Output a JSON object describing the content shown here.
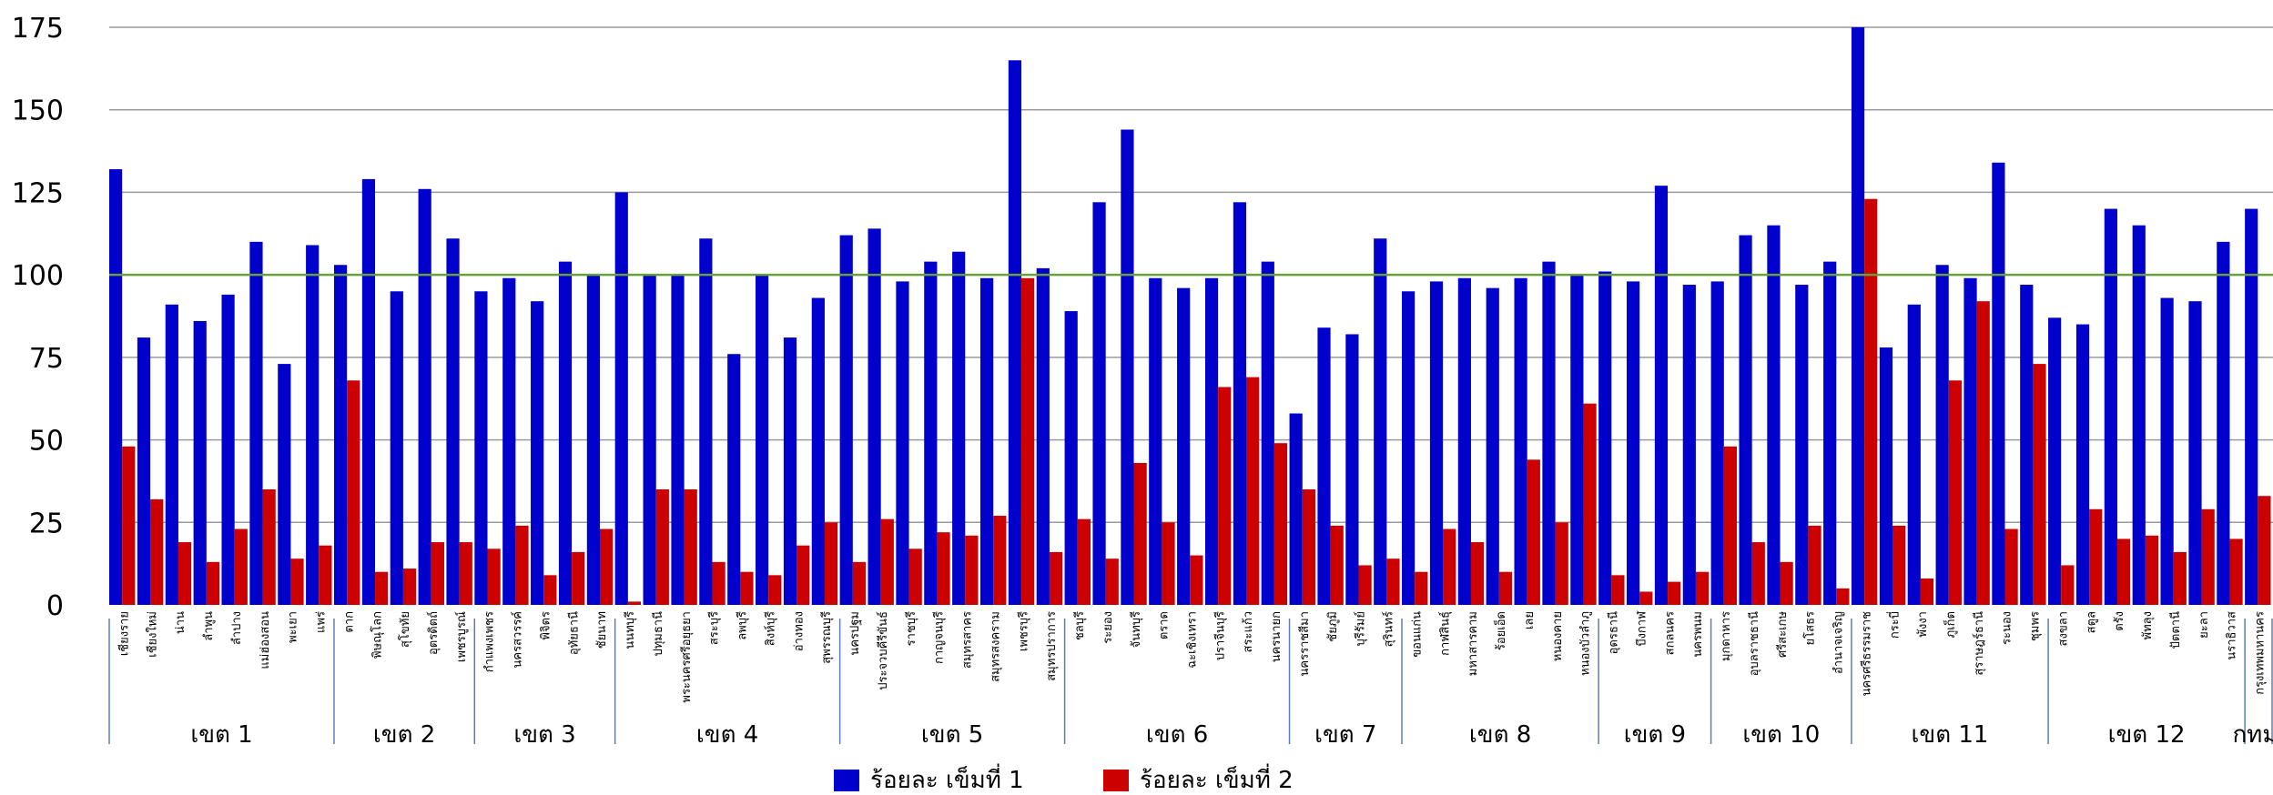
{
  "chart_data": {
    "type": "bar",
    "title": "",
    "xlabel": "",
    "ylabel": "",
    "ylim": [
      0,
      175
    ],
    "yticks": [
      0,
      25,
      50,
      75,
      100,
      125,
      150,
      175
    ],
    "grid": true,
    "reference_line": {
      "value": 100,
      "color": "#6aa03a"
    },
    "legend_position": "bottom-center",
    "categories": [
      "เชียงราย",
      "เชียงใหม่",
      "น่าน",
      "ลำพูน",
      "ลำปาง",
      "แม่ฮ่องสอน",
      "พะเยา",
      "แพร่",
      "ตาก",
      "พิษณุโลก",
      "สุโขทัย",
      "อุตรดิตถ์",
      "เพชรบูรณ์",
      "กำแพงเพชร",
      "นครสวรรค์",
      "พิจิตร",
      "อุทัยธานี",
      "ชัยนาท",
      "นนทบุรี",
      "ปทุมธานี",
      "พระนครศรีอยุธยา",
      "สระบุรี",
      "ลพบุรี",
      "สิงห์บุรี",
      "อ่างทอง",
      "สุพรรณบุรี",
      "นครปฐม",
      "ประจวบคีรีขันธ์",
      "ราชบุรี",
      "กาญจนบุรี",
      "สมุทรสาคร",
      "สมุทรสงคราม",
      "เพชรบุรี",
      "สมุทรปราการ",
      "ชลบุรี",
      "ระยอง",
      "จันทบุรี",
      "ตราด",
      "ฉะเชิงเทรา",
      "ปราจีนบุรี",
      "สระแก้ว",
      "นครนายก",
      "นครราชสีมา",
      "ชัยภูมิ",
      "บุรีรัมย์",
      "สุรินทร์",
      "ขอนแก่น",
      "กาฬสินธุ์",
      "มหาสารคาม",
      "ร้อยเอ็ด",
      "เลย",
      "หนองคาย",
      "หนองบัวลำภู",
      "อุดรธานี",
      "บึงกาฬ",
      "สกลนคร",
      "นครพนม",
      "มุกดาหาร",
      "อุบลราชธานี",
      "ศรีสะเกษ",
      "ยโสธร",
      "อำนาจเจริญ",
      "นครศรีธรรมราช",
      "กระบี่",
      "พังงา",
      "ภูเก็ต",
      "สุราษฎร์ธานี",
      "ระนอง",
      "ชุมพร",
      "สงขลา",
      "สตูล",
      "ตรัง",
      "พัทลุง",
      "ปัตตานี",
      "ยะลา",
      "นราธิวาส",
      "กรุงเทพมหานคร"
    ],
    "series": [
      {
        "name": "ร้อยละ เข็มที่ 1",
        "color": "#0000cc",
        "values": [
          132,
          81,
          91,
          86,
          94,
          110,
          73,
          109,
          103,
          129,
          95,
          126,
          111,
          95,
          99,
          92,
          104,
          100,
          125,
          100,
          100,
          111,
          76,
          100,
          81,
          93,
          112,
          114,
          98,
          104,
          107,
          99,
          165,
          102,
          89,
          122,
          144,
          99,
          96,
          99,
          122,
          104,
          58,
          84,
          82,
          111,
          95,
          98,
          99,
          96,
          99,
          104,
          100,
          101,
          98,
          127,
          97,
          98,
          112,
          115,
          97,
          104,
          175,
          78,
          91,
          103,
          99,
          134,
          97,
          87,
          85,
          120,
          115,
          93,
          92,
          110,
          120
        ]
      },
      {
        "name": "ร้อยละ เข็มที่ 2",
        "color": "#cc0000",
        "values": [
          48,
          32,
          19,
          13,
          23,
          35,
          14,
          18,
          68,
          10,
          11,
          19,
          19,
          17,
          24,
          9,
          16,
          23,
          1,
          35,
          35,
          13,
          10,
          9,
          18,
          25,
          13,
          26,
          17,
          22,
          21,
          27,
          99,
          16,
          26,
          14,
          43,
          25,
          15,
          66,
          69,
          49,
          35,
          24,
          12,
          14,
          10,
          23,
          19,
          10,
          44,
          25,
          61,
          9,
          4,
          7,
          10,
          48,
          19,
          13,
          24,
          5,
          123,
          24,
          8,
          68,
          92,
          23,
          73,
          12,
          29,
          20,
          21,
          16,
          29,
          20,
          33
        ]
      }
    ],
    "groups": [
      {
        "label": "เขต 1",
        "count": 8
      },
      {
        "label": "เขต 2",
        "count": 5
      },
      {
        "label": "เขต 3",
        "count": 5
      },
      {
        "label": "เขต 4",
        "count": 8
      },
      {
        "label": "เขต 5",
        "count": 8
      },
      {
        "label": "เขต 6",
        "count": 8
      },
      {
        "label": "เขต 7",
        "count": 4
      },
      {
        "label": "เขต 8",
        "count": 7
      },
      {
        "label": "เขต 9",
        "count": 4
      },
      {
        "label": "เขต 10",
        "count": 5
      },
      {
        "label": "เขต 11",
        "count": 7
      },
      {
        "label": "เขต 12",
        "count": 7
      },
      {
        "label": "กทม.",
        "count": 1
      }
    ]
  }
}
